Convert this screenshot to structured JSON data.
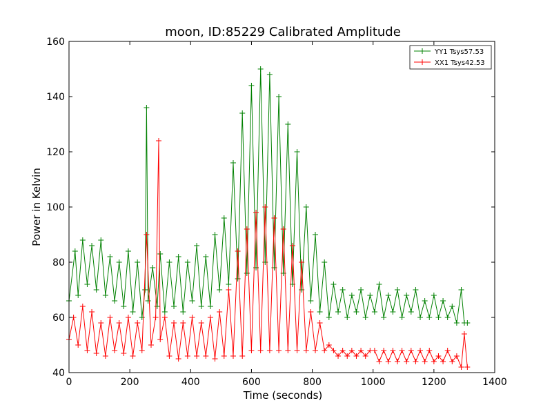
{
  "chart_data": {
    "type": "line",
    "title": "moon, ID:85229 Calibrated Amplitude",
    "xlabel": "Time (seconds)",
    "ylabel": "Power in Kelvin",
    "xlim": [
      0,
      1400
    ],
    "ylim": [
      40,
      160
    ],
    "xticks": [
      "0",
      "200",
      "400",
      "600",
      "800",
      "1000",
      "1200",
      "1400"
    ],
    "yticks": [
      "40",
      "60",
      "80",
      "100",
      "120",
      "140",
      "160"
    ],
    "grid": false,
    "legend_position": "top-right",
    "marker": "+",
    "series": [
      {
        "name": "YY1 Tsys57.53",
        "color": "#008000",
        "x": [
          0,
          20,
          30,
          45,
          60,
          75,
          90,
          105,
          120,
          135,
          150,
          165,
          180,
          195,
          210,
          225,
          240,
          250,
          255,
          260,
          275,
          290,
          300,
          315,
          330,
          345,
          360,
          375,
          390,
          405,
          420,
          435,
          450,
          465,
          480,
          495,
          510,
          525,
          540,
          555,
          570,
          585,
          600,
          615,
          630,
          645,
          660,
          675,
          690,
          705,
          720,
          735,
          750,
          765,
          780,
          795,
          810,
          825,
          840,
          855,
          870,
          885,
          900,
          915,
          930,
          945,
          960,
          975,
          990,
          1005,
          1020,
          1035,
          1050,
          1065,
          1080,
          1095,
          1110,
          1125,
          1140,
          1155,
          1170,
          1185,
          1200,
          1215,
          1230,
          1245,
          1260,
          1275,
          1290,
          1300,
          1310
        ],
        "y": [
          66,
          84,
          68,
          88,
          72,
          86,
          70,
          88,
          68,
          82,
          66,
          80,
          64,
          84,
          62,
          80,
          60,
          70,
          136,
          66,
          78,
          64,
          83,
          62,
          80,
          64,
          82,
          62,
          80,
          66,
          86,
          64,
          82,
          64,
          90,
          70,
          96,
          72,
          116,
          74,
          134,
          76,
          144,
          78,
          150,
          80,
          148,
          78,
          140,
          76,
          130,
          72,
          120,
          70,
          100,
          66,
          90,
          62,
          80,
          60,
          72,
          62,
          70,
          60,
          68,
          62,
          70,
          60,
          68,
          62,
          72,
          60,
          68,
          62,
          70,
          60,
          68,
          62,
          70,
          60,
          66,
          60,
          68,
          60,
          66,
          60,
          64,
          58,
          70,
          58,
          58
        ]
      },
      {
        "name": "XX1 Tsys42.53",
        "color": "#ff0000",
        "x": [
          0,
          15,
          30,
          45,
          60,
          75,
          90,
          105,
          120,
          135,
          150,
          165,
          180,
          195,
          210,
          225,
          240,
          255,
          270,
          285,
          295,
          300,
          315,
          330,
          345,
          360,
          375,
          390,
          405,
          420,
          435,
          450,
          465,
          480,
          495,
          510,
          525,
          540,
          555,
          570,
          585,
          600,
          615,
          630,
          645,
          660,
          675,
          690,
          705,
          720,
          735,
          750,
          765,
          780,
          795,
          810,
          825,
          840,
          855,
          870,
          885,
          900,
          915,
          930,
          945,
          960,
          975,
          990,
          1005,
          1020,
          1035,
          1050,
          1065,
          1080,
          1095,
          1110,
          1125,
          1140,
          1155,
          1170,
          1185,
          1200,
          1215,
          1230,
          1245,
          1260,
          1275,
          1290,
          1300,
          1310
        ],
        "y": [
          52,
          60,
          50,
          64,
          48,
          62,
          47,
          58,
          46,
          60,
          48,
          58,
          47,
          60,
          46,
          58,
          48,
          90,
          50,
          60,
          124,
          52,
          60,
          46,
          58,
          45,
          58,
          46,
          60,
          46,
          58,
          46,
          60,
          45,
          62,
          46,
          70,
          46,
          84,
          46,
          92,
          48,
          98,
          48,
          100,
          48,
          96,
          48,
          92,
          48,
          86,
          48,
          80,
          48,
          62,
          48,
          58,
          48,
          50,
          48,
          46,
          48,
          46,
          48,
          46,
          48,
          46,
          48,
          48,
          44,
          48,
          44,
          48,
          44,
          48,
          44,
          48,
          44,
          48,
          44,
          48,
          44,
          46,
          44,
          48,
          44,
          46,
          42,
          54,
          42
        ]
      }
    ]
  }
}
